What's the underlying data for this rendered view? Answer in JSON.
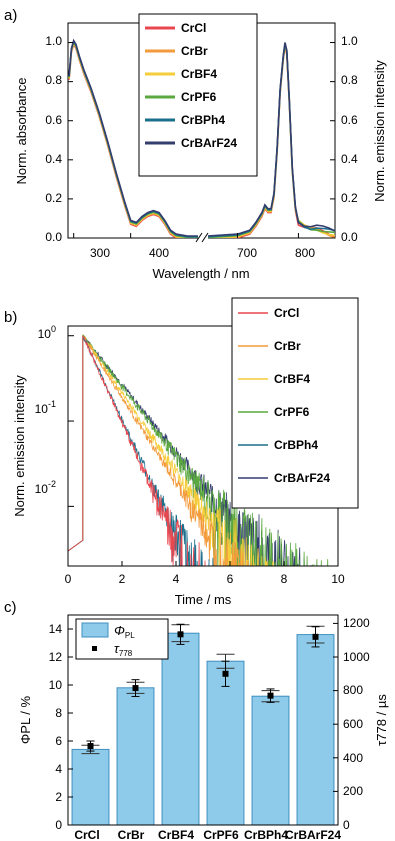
{
  "chart_data": [
    {
      "type": "line",
      "panel_label": "a)",
      "xlabel": "Wavelength / nm",
      "ylabel": "Norm. absorbance",
      "ylabel_right": "Norm. emission intensity",
      "x_break": true,
      "xlim_left": [
        290,
        520
      ],
      "xlim_right": [
        650,
        860
      ],
      "ylim": [
        0,
        1.1
      ],
      "x_ticks_left": [
        "300",
        "400"
      ],
      "x_ticks_right": [
        "700",
        "800"
      ],
      "y_ticks": [
        "0.0",
        "0.2",
        "0.4",
        "0.6",
        "0.8",
        "1.0"
      ],
      "legend_placement": "top-center",
      "series": [
        {
          "name": "CrCl",
          "color": "#e8474f"
        },
        {
          "name": "CrBr",
          "color": "#f39a3c"
        },
        {
          "name": "CrBF4",
          "color": "#f5cc3a"
        },
        {
          "name": "CrPF6",
          "color": "#5aa83f"
        },
        {
          "name": "CrBPh4",
          "color": "#1b6f8c"
        },
        {
          "name": "CrBArF24",
          "color": "#333d6e"
        }
      ],
      "absorption": {
        "x": [
          292,
          296,
          300,
          304,
          310,
          318,
          330,
          345,
          360,
          375,
          390,
          400,
          410,
          420,
          430,
          440,
          450,
          460,
          470,
          480,
          500,
          520
        ],
        "y": [
          0.82,
          0.96,
          1.0,
          0.98,
          0.92,
          0.85,
          0.76,
          0.63,
          0.48,
          0.32,
          0.17,
          0.08,
          0.07,
          0.1,
          0.12,
          0.13,
          0.12,
          0.08,
          0.03,
          0.01,
          0.0,
          0.0
        ]
      },
      "emission": {
        "x": [
          650,
          700,
          720,
          730,
          740,
          745,
          750,
          755,
          760,
          765,
          770,
          775,
          778,
          781,
          785,
          790,
          795,
          800,
          810,
          820,
          830,
          840,
          850,
          860
        ],
        "y": [
          0.0,
          0.01,
          0.03,
          0.07,
          0.12,
          0.16,
          0.14,
          0.14,
          0.22,
          0.45,
          0.75,
          0.92,
          0.99,
          0.95,
          0.7,
          0.35,
          0.15,
          0.08,
          0.06,
          0.05,
          0.05,
          0.04,
          0.03,
          0.02
        ]
      }
    },
    {
      "type": "line",
      "panel_label": "b)",
      "xlabel": "Time / ms",
      "ylabel": "Norm. emission intensity",
      "y_scale": "log",
      "xlim": [
        0,
        10
      ],
      "ylim": [
        0.002,
        1.3
      ],
      "x_ticks": [
        "0",
        "2",
        "4",
        "6",
        "8",
        "10"
      ],
      "y_ticks": [
        "10",
        "10",
        "10"
      ],
      "y_tick_exponents": [
        "0",
        "-1",
        "-2"
      ],
      "legend_placement": "top-right",
      "pulse_ms": 0.55,
      "series": [
        {
          "name": "CrCl",
          "color": "#e8474f",
          "tau_ms": 0.62,
          "noise_floor": 0.003
        },
        {
          "name": "CrBr",
          "color": "#f39a3c",
          "tau_ms": 0.87,
          "noise_floor": 0.0025
        },
        {
          "name": "CrBF4",
          "color": "#f5cc3a",
          "tau_ms": 0.94,
          "noise_floor": 0.004
        },
        {
          "name": "CrPF6",
          "color": "#5aa83f",
          "tau_ms": 1.06,
          "noise_floor": 0.007
        },
        {
          "name": "CrBPh4",
          "color": "#1b6f8c",
          "tau_ms": 0.64,
          "noise_floor": 0.003
        },
        {
          "name": "CrBArF24",
          "color": "#333d6e",
          "tau_ms": 1.1,
          "noise_floor": 0.005
        }
      ]
    },
    {
      "type": "bar",
      "panel_label": "c)",
      "categories": [
        "CrCl",
        "CrBr",
        "CrBF4",
        "CrPF6",
        "CrBPh4",
        "CrBArF24"
      ],
      "ylabel": "ΦPL / %",
      "ylabel_right": "τ778 / µs",
      "ylim": [
        0,
        15
      ],
      "ylim_right": [
        0,
        1250
      ],
      "y_ticks": [
        "0",
        "2",
        "4",
        "6",
        "8",
        "10",
        "12",
        "14"
      ],
      "y_ticks_right": [
        "0",
        "200",
        "400",
        "600",
        "800",
        "1000",
        "1200"
      ],
      "bar_color": "#8ecbea",
      "bar_edge": "#3f8fc0",
      "legend_placement": "top-left",
      "series": [
        {
          "name": "ΦPL",
          "values": [
            5.4,
            9.8,
            13.7,
            11.7,
            9.2,
            13.6
          ],
          "errors": [
            0.3,
            0.4,
            0.6,
            0.5,
            0.4,
            0.6
          ]
        },
        {
          "name": "τ778",
          "values": [
            470,
            815,
            1135,
            900,
            770,
            1120
          ],
          "errors": [
            30,
            50,
            60,
            75,
            40,
            60
          ]
        }
      ],
      "legend_labels": [
        "Φ",
        "PL",
        "τ",
        "778"
      ]
    }
  ]
}
